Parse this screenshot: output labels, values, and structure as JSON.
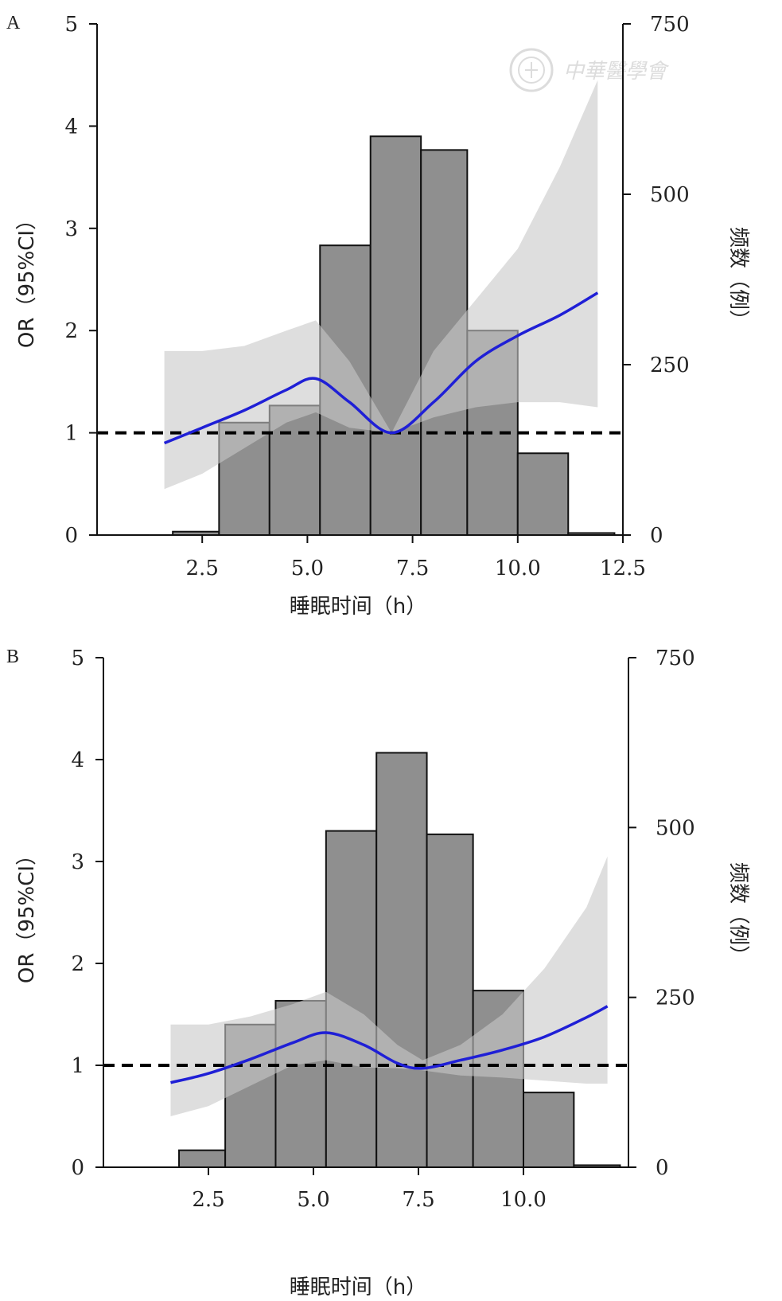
{
  "watermark": {
    "text": "中華醫學會",
    "icon": "medical-association-seal-icon"
  },
  "colors": {
    "bar": "#8f8f8f",
    "ci": "#c8c8c8",
    "line": "#1f1fd6",
    "ref": "#000000"
  },
  "chart_data": [
    {
      "panel": "A",
      "type": "bar",
      "xlabel": "睡眠时间（h）",
      "ylabel": "OR（95%CI）",
      "y2label": "频数（例）",
      "x_ticks": [
        "2.5",
        "5.0",
        "7.5",
        "10.0",
        "12.5"
      ],
      "y_ticks": [
        "0",
        "1",
        "2",
        "3",
        "4",
        "5"
      ],
      "y2_ticks": [
        "0",
        "250",
        "500",
        "750"
      ],
      "xlim": [
        0,
        12.5
      ],
      "ylim": [
        0,
        5
      ],
      "y2lim": [
        0,
        750
      ],
      "reference_or": 1,
      "histogram": {
        "bin_edges": [
          1.8,
          2.9,
          4.1,
          5.3,
          6.5,
          7.7,
          8.8,
          10.0,
          11.2,
          12.3
        ],
        "counts": [
          5,
          165,
          190,
          425,
          585,
          565,
          300,
          120,
          3
        ]
      },
      "or_curve": {
        "x": [
          1.6,
          2.5,
          3.5,
          4.5,
          5.2,
          6.0,
          7.0,
          8.0,
          9.0,
          10.0,
          11.0,
          11.9
        ],
        "y": [
          0.9,
          1.05,
          1.22,
          1.42,
          1.53,
          1.3,
          1.0,
          1.3,
          1.7,
          1.95,
          2.15,
          2.37
        ]
      },
      "ci_band": {
        "x": [
          1.6,
          2.5,
          3.5,
          4.5,
          5.2,
          6.0,
          7.0,
          8.0,
          9.0,
          10.0,
          11.0,
          11.9
        ],
        "lower": [
          0.45,
          0.6,
          0.85,
          1.1,
          1.2,
          1.05,
          1.0,
          1.15,
          1.25,
          1.3,
          1.3,
          1.25
        ],
        "upper": [
          1.8,
          1.8,
          1.85,
          2.0,
          2.1,
          1.7,
          1.0,
          1.8,
          2.3,
          2.8,
          3.6,
          4.45
        ]
      }
    },
    {
      "panel": "B",
      "type": "bar",
      "xlabel": "睡眠时间（h）",
      "ylabel": "OR（95%CI）",
      "y2label": "频数（例）",
      "x_ticks": [
        "2.5",
        "5.0",
        "7.5",
        "10.0"
      ],
      "y_ticks": [
        "0",
        "1",
        "2",
        "3",
        "4",
        "5"
      ],
      "y2_ticks": [
        "0",
        "250",
        "500",
        "750"
      ],
      "xlim": [
        0,
        12.5
      ],
      "ylim": [
        0,
        5
      ],
      "y2lim": [
        0,
        750
      ],
      "reference_or": 1,
      "histogram": {
        "bin_edges": [
          1.8,
          2.9,
          4.1,
          5.3,
          6.5,
          7.7,
          8.8,
          10.0,
          11.2,
          12.3
        ],
        "counts": [
          25,
          210,
          245,
          495,
          610,
          490,
          260,
          110,
          3
        ]
      },
      "or_curve": {
        "x": [
          1.6,
          2.5,
          3.5,
          4.5,
          5.3,
          6.2,
          7.0,
          7.6,
          8.5,
          9.5,
          10.5,
          11.5,
          12.0
        ],
        "y": [
          0.83,
          0.92,
          1.06,
          1.22,
          1.32,
          1.2,
          1.02,
          0.97,
          1.05,
          1.15,
          1.28,
          1.47,
          1.58
        ]
      },
      "ci_band": {
        "x": [
          1.6,
          2.5,
          3.5,
          4.5,
          5.3,
          6.2,
          7.0,
          7.6,
          8.5,
          9.5,
          10.5,
          11.5,
          12.0
        ],
        "lower": [
          0.5,
          0.6,
          0.8,
          1.0,
          1.05,
          0.98,
          0.97,
          0.95,
          0.9,
          0.88,
          0.85,
          0.82,
          0.82
        ],
        "upper": [
          1.4,
          1.4,
          1.48,
          1.6,
          1.72,
          1.5,
          1.2,
          1.05,
          1.2,
          1.5,
          1.95,
          2.55,
          3.05
        ]
      }
    }
  ]
}
